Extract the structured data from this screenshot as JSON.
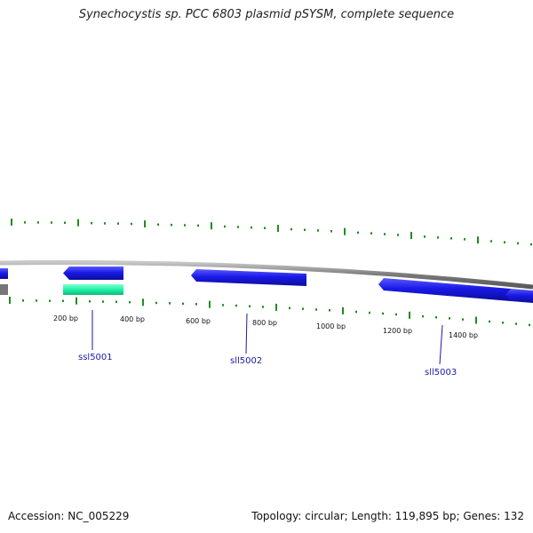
{
  "title": "Synechocystis sp. PCC 6803 plasmid pSYSM, complete sequence",
  "scale_labels": [
    "200 bp",
    "400 bp",
    "600 bp",
    "800 bp",
    "1000 bp",
    "1200 bp",
    "1400 bp"
  ],
  "genes": [
    "ssl5001",
    "sll5002",
    "sll5003"
  ],
  "footer": {
    "accession": "Accession: NC_005229",
    "summary": "Topology: circular; Length: 119,895 bp; Genes: 132"
  },
  "colors": {
    "gene": "#1515e6",
    "rna_feature": "#1ef2a4",
    "backbone": "#8a8a8a",
    "ticks": "#1f8c1f",
    "gene_label": "#1a1aa8"
  }
}
